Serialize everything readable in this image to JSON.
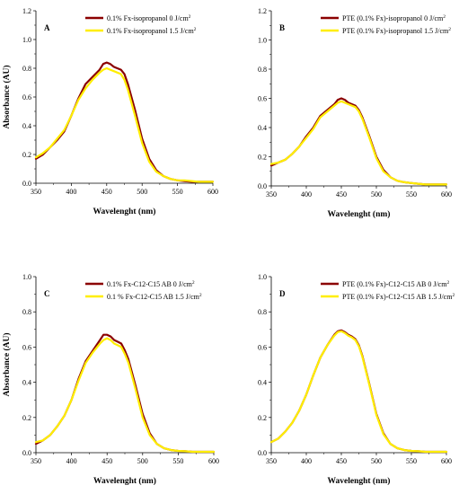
{
  "chart_data": [
    {
      "type": "line",
      "panel": "A",
      "xlabel": "Wavelenght (nm)",
      "ylabel": "Absorbance (AU)",
      "xlim": [
        350,
        600
      ],
      "ylim": [
        0,
        1.2
      ],
      "xticks": [
        "350",
        "400",
        "450",
        "500",
        "550",
        "600"
      ],
      "yticks": [
        "0.0",
        "0.2",
        "0.4",
        "0.6",
        "0.8",
        "1.0",
        "1.2"
      ],
      "legend_position": "top-right",
      "series": [
        {
          "name": "0.1% Fx-isopropanol 0 J/cm",
          "superscript": "2",
          "color": "#8b0000",
          "x": [
            350,
            360,
            370,
            380,
            390,
            400,
            410,
            420,
            430,
            440,
            445,
            450,
            455,
            460,
            465,
            470,
            475,
            480,
            490,
            500,
            510,
            520,
            530,
            540,
            550,
            560,
            570,
            580,
            590,
            600
          ],
          "y": [
            0.17,
            0.2,
            0.25,
            0.3,
            0.36,
            0.47,
            0.59,
            0.69,
            0.74,
            0.79,
            0.83,
            0.84,
            0.83,
            0.81,
            0.8,
            0.79,
            0.76,
            0.69,
            0.51,
            0.31,
            0.17,
            0.09,
            0.05,
            0.03,
            0.02,
            0.015,
            0.01,
            0.01,
            0.01,
            0.01
          ]
        },
        {
          "name": "0.1% Fx-isopropanol 1.5 J/cm",
          "superscript": "2",
          "color": "#ffee00",
          "x": [
            350,
            360,
            370,
            380,
            390,
            400,
            410,
            420,
            430,
            440,
            445,
            450,
            455,
            460,
            465,
            470,
            475,
            480,
            490,
            500,
            510,
            520,
            530,
            540,
            550,
            560,
            570,
            580,
            590,
            600
          ],
          "y": [
            0.18,
            0.21,
            0.25,
            0.31,
            0.37,
            0.47,
            0.58,
            0.66,
            0.72,
            0.77,
            0.79,
            0.8,
            0.79,
            0.78,
            0.77,
            0.76,
            0.72,
            0.65,
            0.47,
            0.28,
            0.15,
            0.08,
            0.05,
            0.03,
            0.02,
            0.02,
            0.015,
            0.01,
            0.01,
            0.01
          ]
        }
      ]
    },
    {
      "type": "line",
      "panel": "B",
      "xlabel": "Wavelenght (nm)",
      "ylabel": "",
      "xlim": [
        350,
        600
      ],
      "ylim": [
        0,
        1.2
      ],
      "xticks": [
        "350",
        "400",
        "450",
        "500",
        "550",
        "600"
      ],
      "yticks": [
        "0.0",
        "0.2",
        "0.4",
        "0.6",
        "0.8",
        "1.0",
        "1.2"
      ],
      "legend_position": "top-right",
      "series": [
        {
          "name": "PTE (0.1% Fx)-isopropanol 0 J/cm",
          "superscript": "2",
          "color": "#8b0000",
          "x": [
            350,
            360,
            370,
            380,
            390,
            400,
            410,
            420,
            430,
            440,
            445,
            450,
            455,
            460,
            465,
            470,
            475,
            480,
            490,
            500,
            510,
            520,
            530,
            540,
            550,
            560,
            570,
            580,
            590,
            600
          ],
          "y": [
            0.14,
            0.16,
            0.18,
            0.22,
            0.27,
            0.34,
            0.4,
            0.48,
            0.52,
            0.56,
            0.59,
            0.6,
            0.59,
            0.57,
            0.56,
            0.55,
            0.52,
            0.47,
            0.34,
            0.2,
            0.11,
            0.06,
            0.035,
            0.025,
            0.02,
            0.015,
            0.01,
            0.01,
            0.01,
            0.01
          ]
        },
        {
          "name": "PTE (0.1% Fx)-isopropanol 1.5 J/cm",
          "superscript": "2",
          "color": "#ffee00",
          "x": [
            350,
            360,
            370,
            380,
            390,
            400,
            410,
            420,
            430,
            440,
            445,
            450,
            455,
            460,
            465,
            470,
            475,
            480,
            490,
            500,
            510,
            520,
            530,
            540,
            550,
            560,
            570,
            580,
            590,
            600
          ],
          "y": [
            0.15,
            0.16,
            0.18,
            0.22,
            0.27,
            0.33,
            0.39,
            0.47,
            0.51,
            0.55,
            0.57,
            0.58,
            0.57,
            0.56,
            0.55,
            0.54,
            0.51,
            0.46,
            0.33,
            0.19,
            0.1,
            0.06,
            0.035,
            0.025,
            0.02,
            0.015,
            0.01,
            0.01,
            0.01,
            0.01
          ]
        }
      ]
    },
    {
      "type": "line",
      "panel": "C",
      "xlabel": "Wavelenght (nm)",
      "ylabel": "Absorbance (AU)",
      "xlim": [
        350,
        600
      ],
      "ylim": [
        0,
        1.0
      ],
      "xticks": [
        "350",
        "400",
        "450",
        "500",
        "550",
        "600"
      ],
      "yticks": [
        "0.0",
        "0.2",
        "0.4",
        "0.6",
        "0.8",
        "1.0"
      ],
      "legend_position": "top-right",
      "series": [
        {
          "name": "0.1% Fx-C12-C15 AB 0 J/cm",
          "superscript": "2",
          "color": "#8b0000",
          "x": [
            350,
            360,
            370,
            380,
            390,
            400,
            410,
            420,
            430,
            440,
            445,
            450,
            455,
            460,
            465,
            470,
            475,
            480,
            490,
            500,
            510,
            520,
            530,
            540,
            550,
            560,
            570,
            580,
            590,
            600
          ],
          "y": [
            0.05,
            0.07,
            0.1,
            0.15,
            0.21,
            0.3,
            0.42,
            0.52,
            0.58,
            0.64,
            0.67,
            0.67,
            0.66,
            0.64,
            0.63,
            0.62,
            0.58,
            0.53,
            0.38,
            0.22,
            0.11,
            0.05,
            0.025,
            0.015,
            0.01,
            0.008,
            0.005,
            0.005,
            0.005,
            0.005
          ]
        },
        {
          "name": "0.1 % Fx-C12-C15 AB 1.5 J/cm",
          "superscript": "2",
          "color": "#ffee00",
          "x": [
            350,
            360,
            370,
            380,
            390,
            400,
            410,
            420,
            430,
            440,
            445,
            450,
            455,
            460,
            465,
            470,
            475,
            480,
            490,
            500,
            510,
            520,
            530,
            540,
            550,
            560,
            570,
            580,
            590,
            600
          ],
          "y": [
            0.06,
            0.07,
            0.1,
            0.15,
            0.21,
            0.3,
            0.41,
            0.51,
            0.57,
            0.62,
            0.64,
            0.65,
            0.64,
            0.62,
            0.61,
            0.6,
            0.56,
            0.51,
            0.36,
            0.2,
            0.1,
            0.05,
            0.025,
            0.015,
            0.01,
            0.008,
            0.005,
            0.005,
            0.005,
            0.005
          ]
        }
      ]
    },
    {
      "type": "line",
      "panel": "D",
      "xlabel": "Wavelenght (nm)",
      "ylabel": "",
      "xlim": [
        350,
        600
      ],
      "ylim": [
        0,
        1.0
      ],
      "xticks": [
        "350",
        "400",
        "450",
        "500",
        "550",
        "600"
      ],
      "yticks": [
        "0.0",
        "0.2",
        "0.4",
        "0.6",
        "0.8",
        "1.0"
      ],
      "legend_position": "top-right",
      "series": [
        {
          "name": "PTE (0.1% Fx)-C12-C15 AB 0 J/cm",
          "superscript": "2",
          "color": "#8b0000",
          "x": [
            350,
            360,
            370,
            380,
            390,
            400,
            410,
            420,
            430,
            440,
            445,
            450,
            455,
            460,
            465,
            470,
            475,
            480,
            490,
            500,
            510,
            520,
            530,
            540,
            550,
            560,
            570,
            580,
            590,
            600
          ],
          "y": [
            0.06,
            0.08,
            0.12,
            0.17,
            0.24,
            0.33,
            0.44,
            0.54,
            0.61,
            0.67,
            0.69,
            0.695,
            0.685,
            0.67,
            0.66,
            0.645,
            0.61,
            0.55,
            0.39,
            0.22,
            0.11,
            0.05,
            0.025,
            0.015,
            0.01,
            0.008,
            0.005,
            0.005,
            0.005,
            0.005
          ]
        },
        {
          "name": "PTE (0.1% Fx)-C12-C15 AB 1.5 J/cm",
          "superscript": "2",
          "color": "#ffee00",
          "x": [
            350,
            360,
            370,
            380,
            390,
            400,
            410,
            420,
            430,
            440,
            445,
            450,
            455,
            460,
            465,
            470,
            475,
            480,
            490,
            500,
            510,
            520,
            530,
            540,
            550,
            560,
            570,
            580,
            590,
            600
          ],
          "y": [
            0.06,
            0.08,
            0.12,
            0.17,
            0.24,
            0.33,
            0.44,
            0.54,
            0.61,
            0.665,
            0.685,
            0.69,
            0.68,
            0.665,
            0.655,
            0.64,
            0.605,
            0.545,
            0.385,
            0.215,
            0.105,
            0.05,
            0.025,
            0.015,
            0.01,
            0.008,
            0.005,
            0.005,
            0.005,
            0.005
          ]
        }
      ]
    }
  ]
}
